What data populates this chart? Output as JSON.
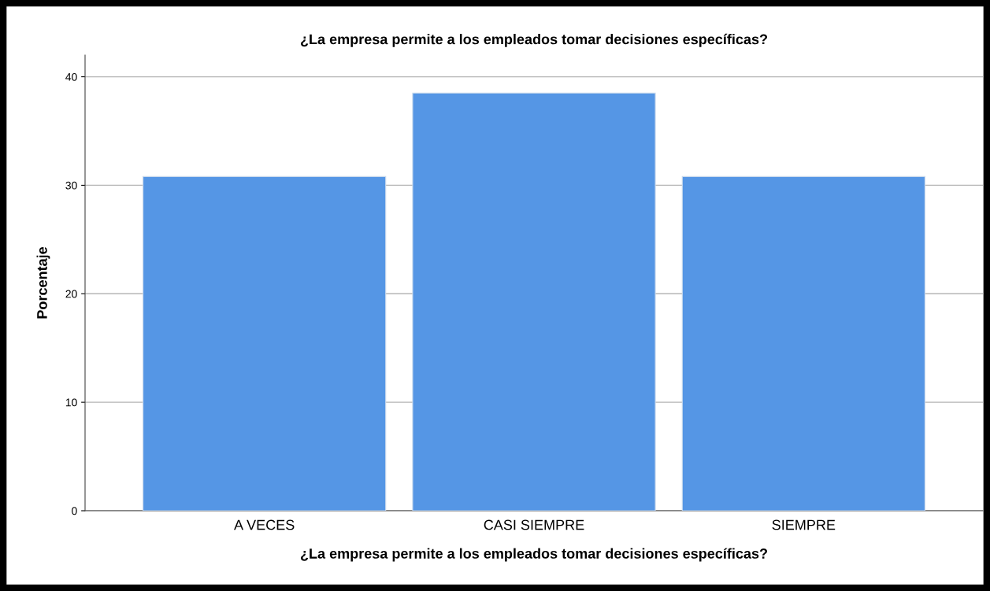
{
  "chart_data": {
    "type": "bar",
    "title": "¿La empresa permite a los empleados tomar decisiones específicas?",
    "xlabel": "¿La empresa permite a los empleados tomar decisiones específicas?",
    "ylabel": "Porcentaje",
    "categories": [
      "A VECES",
      "CASI SIEMPRE",
      "SIEMPRE"
    ],
    "values": [
      30.8,
      38.5,
      30.8
    ],
    "color": "#5596e5",
    "ylim": [
      0,
      42
    ],
    "yticks": [
      0,
      10,
      20,
      30,
      40
    ],
    "grid": "y"
  }
}
